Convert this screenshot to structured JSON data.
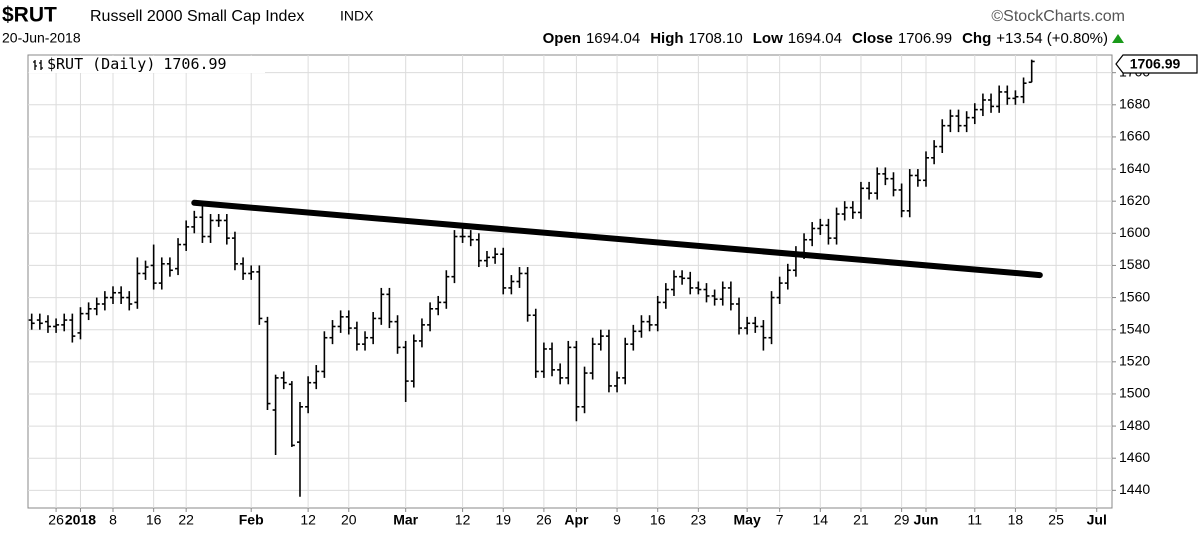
{
  "header": {
    "symbol": "$RUT",
    "name": "Russell 2000 Small Cap Index",
    "exchange": "INDX",
    "date": "20-Jun-2018",
    "source": "©StockCharts.com",
    "quote": [
      {
        "label": "Open",
        "value": "1694.04"
      },
      {
        "label": "High",
        "value": "1708.10"
      },
      {
        "label": "Low",
        "value": "1694.04"
      },
      {
        "label": "Close",
        "value": "1706.99"
      },
      {
        "label": "Chg",
        "value": "+13.54 (+0.80%)"
      }
    ]
  },
  "chart_data": {
    "type": "ohlc",
    "categories": [
      null,
      null,
      null,
      "26",
      null,
      null,
      "2018",
      null,
      null,
      null,
      "8",
      null,
      null,
      null,
      null,
      "16",
      null,
      null,
      null,
      "22",
      null,
      null,
      null,
      null,
      null,
      null,
      null,
      "Feb",
      null,
      null,
      null,
      null,
      null,
      null,
      "12",
      null,
      null,
      null,
      null,
      "20",
      null,
      null,
      null,
      null,
      null,
      null,
      "Mar",
      null,
      null,
      null,
      null,
      null,
      null,
      "12",
      null,
      null,
      null,
      null,
      "19",
      null,
      null,
      null,
      null,
      "26",
      null,
      null,
      null,
      "Apr",
      null,
      null,
      null,
      null,
      "9",
      null,
      null,
      null,
      null,
      "16",
      null,
      null,
      null,
      null,
      "23",
      null,
      null,
      null,
      null,
      null,
      "May",
      null,
      null,
      null,
      "7",
      null,
      null,
      null,
      null,
      "14",
      null,
      null,
      null,
      null,
      "21",
      null,
      null,
      null,
      null,
      "29",
      null,
      null,
      "Jun",
      null,
      null,
      null,
      null,
      null,
      "11",
      null,
      null,
      null,
      null,
      "18",
      null,
      null,
      null,
      null,
      "25",
      null,
      null,
      null,
      null,
      "Jul"
    ],
    "series": [
      {
        "name": "$RUT (Daily)",
        "color": "#000000",
        "open": [
          1546,
          1546,
          1545,
          1542,
          1543,
          1546,
          1538,
          1550,
          1553,
          1556,
          1560,
          1563,
          1560,
          1557,
          1575,
          1580,
          1569,
          1581,
          1578,
          1593,
          1604,
          1610,
          1598,
          1608,
          1608,
          1597,
          1581,
          1575,
          1576,
          1545,
          1490,
          1510,
          1506,
          1470,
          1492,
          1507,
          1514,
          1535,
          1542,
          1548,
          1541,
          1531,
          1535,
          1547,
          1562,
          1545,
          1529,
          1508,
          1533,
          1543,
          1553,
          1557,
          1573,
          1598,
          1598,
          1596,
          1583,
          1585,
          1587,
          1566,
          1570,
          1575,
          1549,
          1514,
          1528,
          1515,
          1510,
          1529,
          1492,
          1513,
          1531,
          1536,
          1505,
          1510,
          1531,
          1539,
          1545,
          1543,
          1557,
          1565,
          1573,
          1572,
          1566,
          1565,
          1561,
          1559,
          1566,
          1556,
          1541,
          1544,
          1542,
          1535,
          1560,
          1569,
          1577,
          1588,
          1596,
          1603,
          1605,
          1597,
          1612,
          1616,
          1613,
          1628,
          1625,
          1637,
          1634,
          1627,
          1614,
          1636,
          1633,
          1647,
          1654,
          1667,
          1673,
          1667,
          1672,
          1677,
          1683,
          1679,
          1688,
          1684,
          1685,
          1694.04,
          null,
          null,
          null,
          null,
          null,
          null,
          null,
          null
        ],
        "high": [
          1550,
          1550,
          1549,
          1547,
          1550,
          1550,
          1554,
          1557,
          1560,
          1564,
          1567,
          1567,
          1564,
          1585,
          1583,
          1593,
          1585,
          1585,
          1597,
          1608,
          1614,
          1618,
          1612,
          1612,
          1612,
          1601,
          1585,
          1580,
          1580,
          1548,
          1512,
          1514,
          1508,
          1495,
          1511,
          1518,
          1539,
          1546,
          1552,
          1552,
          1545,
          1539,
          1551,
          1566,
          1566,
          1549,
          1533,
          1537,
          1547,
          1557,
          1561,
          1577,
          1602,
          1606,
          1602,
          1600,
          1589,
          1591,
          1591,
          1574,
          1579,
          1579,
          1553,
          1532,
          1532,
          1519,
          1533,
          1533,
          1517,
          1535,
          1540,
          1540,
          1514,
          1535,
          1543,
          1549,
          1549,
          1561,
          1569,
          1577,
          1577,
          1576,
          1570,
          1569,
          1565,
          1570,
          1570,
          1560,
          1548,
          1548,
          1546,
          1564,
          1573,
          1581,
          1592,
          1600,
          1607,
          1609,
          1609,
          1616,
          1620,
          1620,
          1632,
          1632,
          1641,
          1641,
          1638,
          1631,
          1640,
          1640,
          1651,
          1658,
          1671,
          1677,
          1677,
          1676,
          1681,
          1687,
          1687,
          1692,
          1692,
          1689,
          1697,
          1708.1,
          null,
          null,
          null,
          null,
          null,
          null,
          null,
          null
        ],
        "low": [
          1540,
          1540,
          1538,
          1538,
          1539,
          1532,
          1534,
          1546,
          1549,
          1552,
          1556,
          1556,
          1552,
          1553,
          1571,
          1565,
          1565,
          1573,
          1574,
          1589,
          1600,
          1594,
          1594,
          1604,
          1593,
          1577,
          1571,
          1571,
          1543,
          1490,
          1462,
          1503,
          1467,
          1436,
          1488,
          1503,
          1510,
          1531,
          1538,
          1537,
          1527,
          1527,
          1531,
          1543,
          1541,
          1525,
          1495,
          1504,
          1529,
          1539,
          1549,
          1553,
          1569,
          1594,
          1592,
          1579,
          1579,
          1581,
          1562,
          1562,
          1566,
          1545,
          1510,
          1510,
          1511,
          1506,
          1506,
          1483,
          1488,
          1509,
          1527,
          1501,
          1501,
          1506,
          1527,
          1535,
          1539,
          1539,
          1553,
          1561,
          1568,
          1562,
          1562,
          1557,
          1555,
          1555,
          1552,
          1537,
          1537,
          1538,
          1527,
          1531,
          1556,
          1565,
          1573,
          1584,
          1592,
          1599,
          1593,
          1593,
          1608,
          1609,
          1609,
          1621,
          1621,
          1630,
          1623,
          1610,
          1610,
          1629,
          1629,
          1643,
          1650,
          1663,
          1663,
          1663,
          1668,
          1673,
          1675,
          1675,
          1680,
          1680,
          1681,
          1694.04,
          null,
          null,
          null,
          null,
          null,
          null,
          null,
          null
        ],
        "close": [
          1544,
          1544,
          1542,
          1543,
          1546,
          1536,
          1550,
          1553,
          1556,
          1560,
          1563,
          1560,
          1556,
          1575,
          1579,
          1569,
          1581,
          1577,
          1593,
          1604,
          1610,
          1598,
          1608,
          1608,
          1597,
          1581,
          1575,
          1576,
          1547,
          1494,
          1510,
          1507,
          1468,
          1492,
          1507,
          1514,
          1535,
          1542,
          1548,
          1541,
          1531,
          1535,
          1547,
          1562,
          1545,
          1529,
          1508,
          1533,
          1543,
          1553,
          1557,
          1573,
          1598,
          1598,
          1596,
          1583,
          1585,
          1587,
          1566,
          1570,
          1575,
          1549,
          1514,
          1528,
          1515,
          1510,
          1529,
          1492,
          1513,
          1531,
          1536,
          1505,
          1510,
          1531,
          1539,
          1545,
          1543,
          1557,
          1565,
          1573,
          1572,
          1566,
          1565,
          1561,
          1559,
          1566,
          1556,
          1541,
          1544,
          1542,
          1535,
          1560,
          1569,
          1577,
          1588,
          1596,
          1603,
          1605,
          1597,
          1612,
          1616,
          1613,
          1628,
          1625,
          1637,
          1634,
          1627,
          1614,
          1636,
          1633,
          1647,
          1654,
          1667,
          1673,
          1667,
          1672,
          1677,
          1683,
          1679,
          1688,
          1684,
          1685,
          1693.45,
          1706.99,
          null,
          null,
          null,
          null,
          null,
          null,
          null,
          null
        ]
      }
    ],
    "ylim": [
      1429,
      1711
    ],
    "yticks": [
      1440,
      1460,
      1480,
      1500,
      1520,
      1540,
      1560,
      1580,
      1600,
      1620,
      1640,
      1660,
      1680,
      1700
    ],
    "grid": true,
    "trendline": {
      "start": {
        "category_index": 20,
        "value": 1619
      },
      "end": {
        "category_index": 124,
        "value": 1574
      }
    }
  }
}
